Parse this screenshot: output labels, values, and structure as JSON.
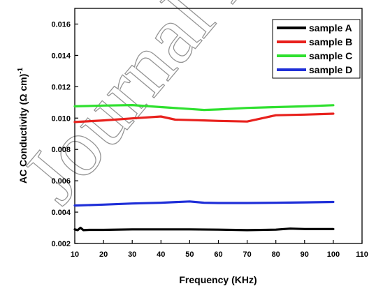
{
  "chart_data": {
    "type": "line",
    "xlabel": "Frequency (KHz)",
    "ylabel": "AC Conductivity (Ω cm)",
    "ylabel_sup": "-1",
    "xlim": [
      10,
      110
    ],
    "ylim": [
      0.002,
      0.017
    ],
    "xticks": [
      10,
      20,
      30,
      40,
      50,
      60,
      70,
      80,
      90,
      100,
      110
    ],
    "yticks": [
      0.002,
      0.004,
      0.006,
      0.008,
      0.01,
      0.012,
      0.014,
      0.016
    ],
    "ytick_labels": [
      "0.002",
      "0.004",
      "0.006",
      "0.008",
      "0.010",
      "0.012",
      "0.014",
      "0.016"
    ],
    "grid": false,
    "legend_position": "top-right",
    "series": [
      {
        "name": "sample A",
        "color": "#000000",
        "x": [
          10,
          11,
          12,
          13,
          15,
          20,
          30,
          40,
          50,
          60,
          70,
          80,
          85,
          90,
          100
        ],
        "y": [
          0.0029,
          0.00285,
          0.003,
          0.00285,
          0.00287,
          0.00287,
          0.0029,
          0.0029,
          0.0029,
          0.00288,
          0.00285,
          0.00288,
          0.00295,
          0.00292,
          0.00292
        ]
      },
      {
        "name": "sample B",
        "color": "#e8211d",
        "x": [
          10,
          20,
          30,
          40,
          45,
          55,
          60,
          70,
          80,
          90,
          100
        ],
        "y": [
          0.00975,
          0.00985,
          0.00998,
          0.0101,
          0.0099,
          0.00985,
          0.00982,
          0.00978,
          0.01018,
          0.01022,
          0.01028
        ]
      },
      {
        "name": "sample C",
        "color": "#2fe02f",
        "x": [
          10,
          20,
          30,
          40,
          50,
          55,
          60,
          70,
          80,
          90,
          100
        ],
        "y": [
          0.01075,
          0.0108,
          0.01083,
          0.0107,
          0.01058,
          0.01052,
          0.01055,
          0.01065,
          0.0107,
          0.01075,
          0.01082
        ]
      },
      {
        "name": "sample D",
        "color": "#1f2fd8",
        "x": [
          10,
          20,
          30,
          40,
          50,
          55,
          60,
          70,
          80,
          90,
          100
        ],
        "y": [
          0.00442,
          0.00448,
          0.00455,
          0.0046,
          0.00468,
          0.0046,
          0.00458,
          0.00458,
          0.0046,
          0.00462,
          0.00465
        ]
      }
    ]
  },
  "watermark": {
    "text": "Journal Pre",
    "color": "#000000"
  }
}
